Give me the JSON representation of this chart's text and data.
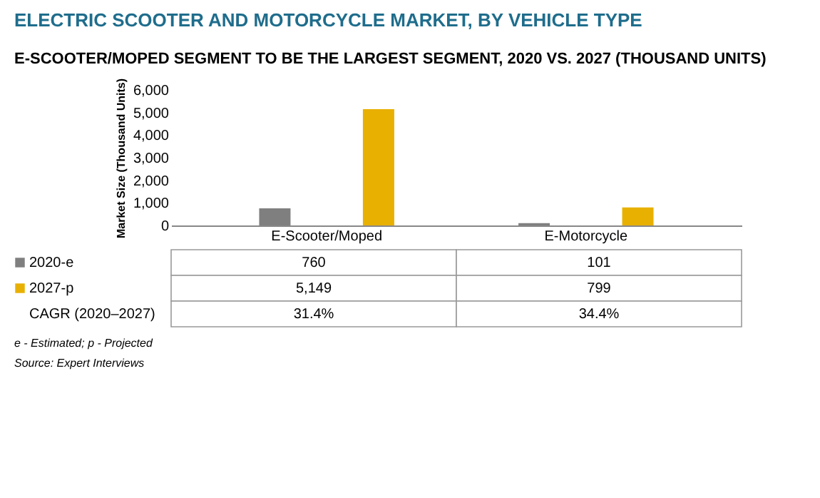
{
  "chart_data": {
    "type": "bar",
    "title": "ELECTRIC SCOOTER AND MOTORCYCLE MARKET, BY VEHICLE TYPE",
    "subtitle": "E-SCOOTER/MOPED SEGMENT TO BE THE LARGEST SEGMENT, 2020 VS. 2027 (THOUSAND UNITS)",
    "ylabel": "Market Size (Thousand Units)",
    "categories": [
      "E-Scooter/Moped",
      "E-Motorcycle"
    ],
    "series": [
      {
        "name": "2020-e",
        "color": "#7f7f7f",
        "values": [
          760,
          101
        ],
        "value_labels": [
          "760",
          "101"
        ]
      },
      {
        "name": "2027-p",
        "color": "#e8b000",
        "values": [
          5149,
          799
        ],
        "value_labels": [
          "5,149",
          "799"
        ]
      }
    ],
    "ylim": [
      0,
      6000
    ],
    "yticks": [
      0,
      {
        "value": 1000,
        "label": "1,000"
      },
      {
        "value": 2000,
        "label": "2,000"
      },
      {
        "value": 3000,
        "label": "3,000"
      },
      {
        "value": 4000,
        "label": "4,000"
      },
      {
        "value": 5000,
        "label": "5,000"
      },
      {
        "value": 6000,
        "label": "6,000"
      }
    ],
    "grid": false,
    "legend": "bottom",
    "annotations": [
      "CAGR (2020–2027)",
      "31.4%",
      "34.4%",
      "e - Estimated; p - Projected",
      "Source: Expert Interviews"
    ]
  }
}
